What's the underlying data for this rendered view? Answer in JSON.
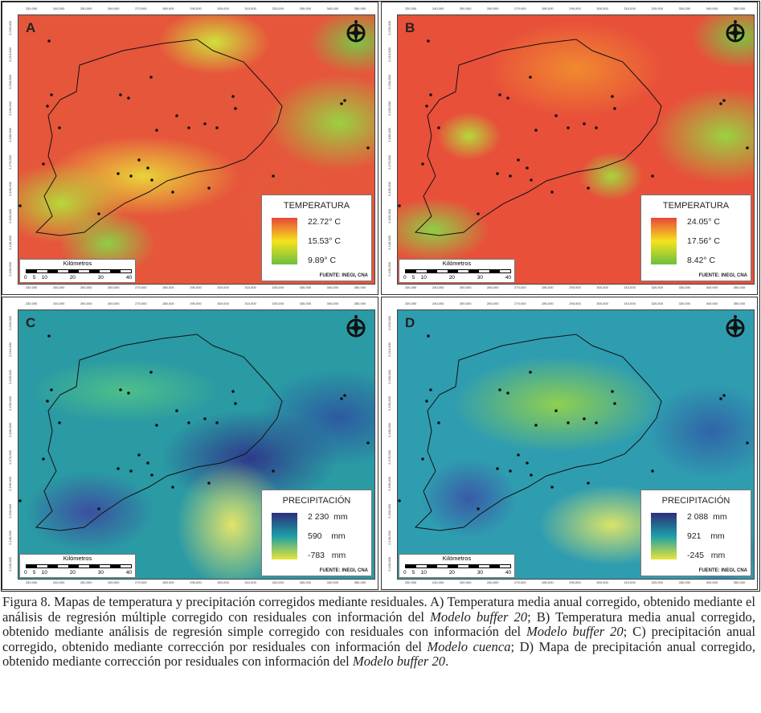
{
  "panels": [
    {
      "letter": "A",
      "legend_title": "TEMPERATURA",
      "values": [
        "22.72° C",
        "15.53° C",
        "9.89° C"
      ],
      "kind": "temp-a"
    },
    {
      "letter": "B",
      "legend_title": "TEMPERATURA",
      "values": [
        "24.05° C",
        "17.56° C",
        "8.42° C"
      ],
      "kind": "temp-b"
    },
    {
      "letter": "C",
      "legend_title": "PRECIPITACIÓN",
      "values": [
        "2 230  mm",
        "590    mm",
        "-783   mm"
      ],
      "kind": "prec-c"
    },
    {
      "letter": "D",
      "legend_title": "PRECIPITACIÓN",
      "values": [
        "2 088  mm",
        "921    mm",
        "-245   mm"
      ],
      "kind": "prec-d"
    }
  ],
  "scale": {
    "label": "Kilómetros",
    "ticks": [
      "0",
      "5",
      "10",
      "20",
      "30",
      "40"
    ]
  },
  "source": "FUENTE: INEGI, CNA",
  "x_ticks": [
    "230,000",
    "240,000",
    "250,000",
    "260,000",
    "270,000",
    "280,000",
    "290,000",
    "300,000",
    "310,000",
    "320,000",
    "330,000",
    "340,000",
    "350,000"
  ],
  "y_ticks": [
    "2,220,000",
    "2,210,000",
    "2,200,000",
    "2,190,000",
    "2,180,000",
    "2,170,000",
    "2,160,000",
    "2,150,000",
    "2,140,000",
    "2,130,000"
  ],
  "colors": {
    "temp": [
      "#e8463a",
      "#f5e21c",
      "#6cbf3f"
    ],
    "prec": [
      "#2c2f7a",
      "#1e9ea6",
      "#e6e63a"
    ]
  },
  "caption": {
    "p1": "Figura 8. Mapas de temperatura y precipitación corregidos mediante residuales. A) Temperatura media anual corregido, obtenido mediante el análisis de regresión múltiple corregido con residuales con información del ",
    "i1": "Modelo buffer 20",
    "p2": "; B) Temperatura media anual corregido, obtenido mediante análisis de regresión simple corregido con residuales con información del ",
    "i2": "Modelo buffer 20",
    "p3": "; C) precipitación anual corregido, obtenido mediante corrección por residuales con información del ",
    "i3": "Modelo cuenca",
    "p4": "; D) Mapa de precipitación anual corregido, obtenido mediante corrección por residuales con información del ",
    "i4": "Modelo buffer 20",
    "p5": "."
  }
}
